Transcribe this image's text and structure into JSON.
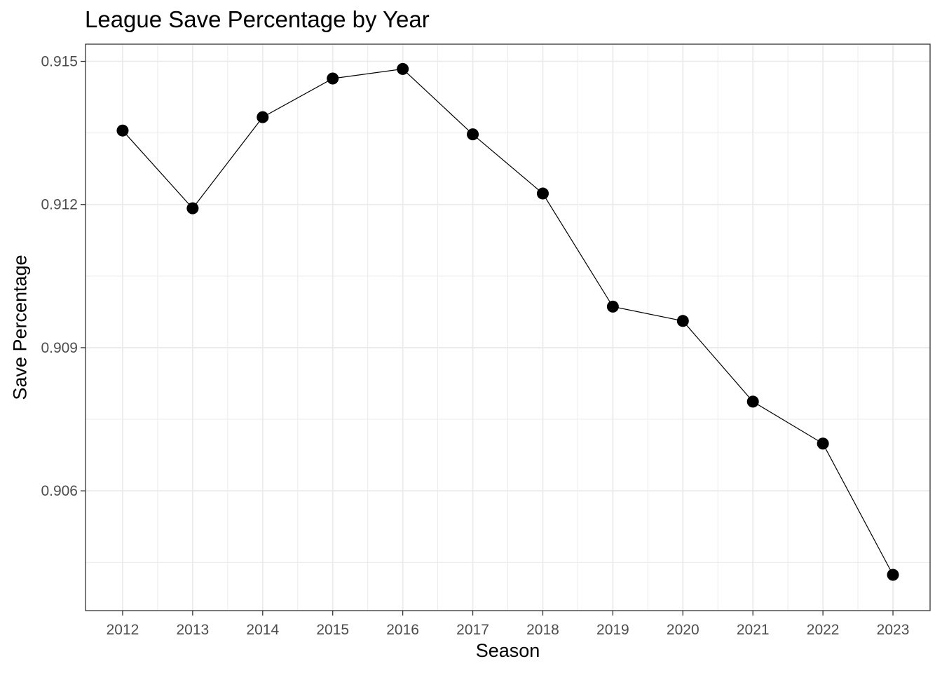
{
  "chart_data": {
    "type": "line",
    "title": "League Save Percentage by Year",
    "xlabel": "Season",
    "ylabel": "Save Percentage",
    "x": [
      2012,
      2013,
      2014,
      2015,
      2016,
      2017,
      2018,
      2019,
      2020,
      2021,
      2022,
      2023
    ],
    "series": [
      {
        "values": [
          0.91355,
          0.91192,
          0.91383,
          0.91464,
          0.91484,
          0.91347,
          0.91223,
          0.90986,
          0.90956,
          0.90787,
          0.90699,
          0.90424
        ]
      }
    ],
    "xlim": [
      2011.47,
      2023.53
    ],
    "ylim": [
      0.90349,
      0.91536
    ],
    "x_ticks": [
      "2012",
      "2013",
      "2014",
      "2015",
      "2016",
      "2017",
      "2018",
      "2019",
      "2020",
      "2021",
      "2022",
      "2023"
    ],
    "y_ticks": [
      "0.906",
      "0.909",
      "0.912",
      "0.915"
    ],
    "y_tick_values": [
      0.906,
      0.909,
      0.912,
      0.915
    ],
    "y_minor_values": [
      0.9045,
      0.9075,
      0.9105,
      0.9135
    ],
    "grid": true,
    "legend": "none",
    "colors": {
      "line": "#000000",
      "point": "#000000",
      "grid": "#ebebeb",
      "panel_border": "#333333",
      "tick_text": "#4d4d4d"
    }
  }
}
